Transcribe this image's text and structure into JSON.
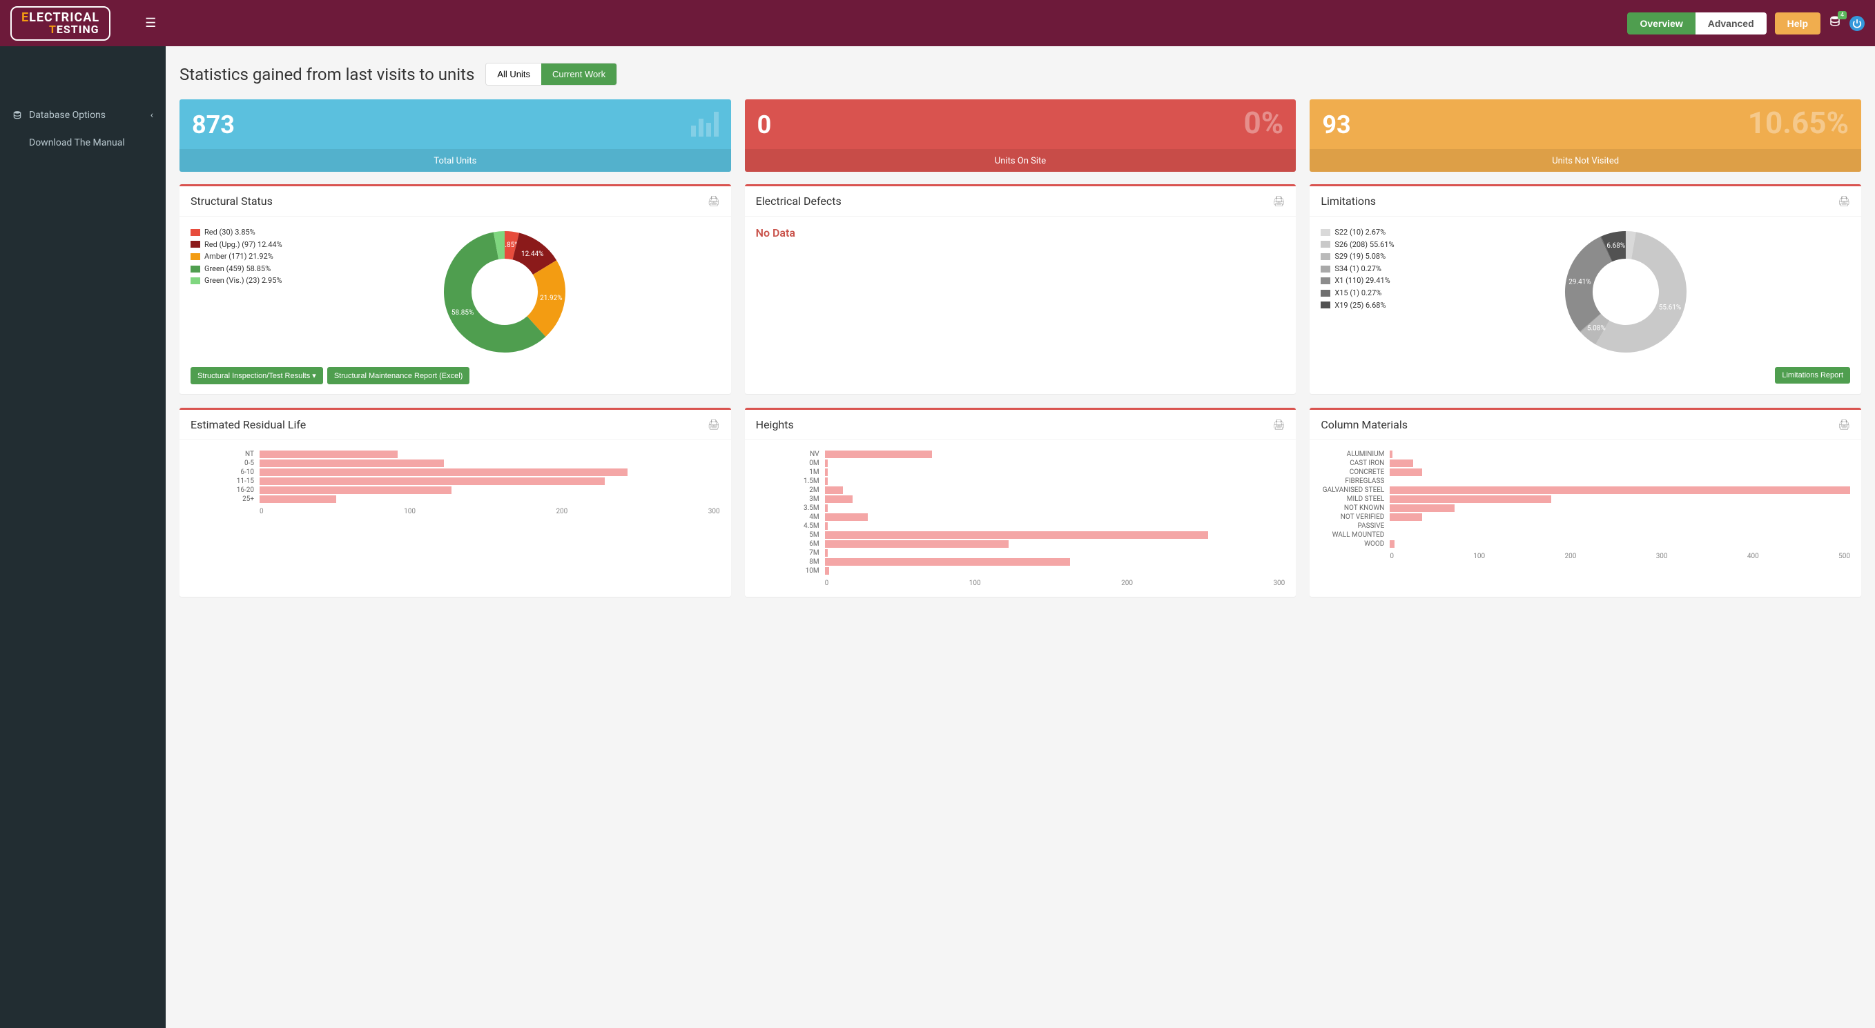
{
  "header": {
    "logo_line1": "ELECTRICAL",
    "logo_line2": "TESTING",
    "overview_label": "Overview",
    "advanced_label": "Advanced",
    "help_label": "Help",
    "notification_count": "4"
  },
  "sidebar": {
    "database_options": "Database Options",
    "download_manual": "Download The Manual"
  },
  "page": {
    "title": "Statistics gained from last visits to units",
    "tab_all": "All Units",
    "tab_current": "Current Work"
  },
  "stats": {
    "total_units": {
      "value": "873",
      "label": "Total Units",
      "color": "#5bc0de"
    },
    "on_site": {
      "value": "0",
      "pct": "0%",
      "label": "Units On Site",
      "color": "#d9534f"
    },
    "not_visited": {
      "value": "93",
      "pct": "10.65%",
      "label": "Units Not Visited",
      "color": "#f0ad4e"
    }
  },
  "structural_status": {
    "title": "Structural Status",
    "items": [
      {
        "label": "Red (30) 3.85%",
        "color": "#e74c3c",
        "pct": 3.85,
        "slice_label": "3.85%"
      },
      {
        "label": "Red (Upg.) (97) 12.44%",
        "color": "#8b1a1a",
        "pct": 12.44,
        "slice_label": "12.44%"
      },
      {
        "label": "Amber (171) 21.92%",
        "color": "#f39c12",
        "pct": 21.92,
        "slice_label": "21.92%"
      },
      {
        "label": "Green (459) 58.85%",
        "color": "#4f9e4f",
        "pct": 58.85,
        "slice_label": "58.85%"
      },
      {
        "label": "Green (Vis.) (23) 2.95%",
        "color": "#7fd67f",
        "pct": 2.95,
        "slice_label": "2.95%"
      }
    ],
    "btn_results": "Structural Inspection/Test Results",
    "btn_excel": "Structural Maintenance Report (Excel)"
  },
  "electrical_defects": {
    "title": "Electrical Defects",
    "no_data": "No Data"
  },
  "limitations": {
    "title": "Limitations",
    "items": [
      {
        "label": "S22 (10) 2.67%",
        "color": "#d9d9d9",
        "pct": 2.67,
        "slice_label": "2.67"
      },
      {
        "label": "S26 (208) 55.61%",
        "color": "#c9c9c9",
        "pct": 55.61,
        "slice_label": "55.61%"
      },
      {
        "label": "S29 (19) 5.08%",
        "color": "#bababa",
        "pct": 5.08,
        "slice_label": "5.08%"
      },
      {
        "label": "S34 (1) 0.27%",
        "color": "#a9a9a9",
        "pct": 0.27,
        "slice_label": ""
      },
      {
        "label": "X1 (110) 29.41%",
        "color": "#8c8c8c",
        "pct": 29.41,
        "slice_label": "29.41%"
      },
      {
        "label": "X15 (1) 0.27%",
        "color": "#6f6f6f",
        "pct": 0.27,
        "slice_label": ""
      },
      {
        "label": "X19 (25) 6.68%",
        "color": "#525252",
        "pct": 6.68,
        "slice_label": "6.68%"
      }
    ],
    "btn_report": "Limitations Report"
  },
  "residual_life": {
    "title": "Estimated Residual Life",
    "bar_color": "#f4a6a6",
    "xmax": 300,
    "xticks": [
      "0",
      "100",
      "200",
      "300"
    ],
    "rows": [
      {
        "label": "NT",
        "value": 90
      },
      {
        "label": "0-5",
        "value": 120
      },
      {
        "label": "6-10",
        "value": 240
      },
      {
        "label": "11-15",
        "value": 225
      },
      {
        "label": "16-20",
        "value": 125
      },
      {
        "label": "25+",
        "value": 50
      }
    ]
  },
  "heights": {
    "title": "Heights",
    "bar_color": "#f4a6a6",
    "xmax": 300,
    "xticks": [
      "0",
      "100",
      "200",
      "300"
    ],
    "rows": [
      {
        "label": "NV",
        "value": 70
      },
      {
        "label": "0M",
        "value": 2
      },
      {
        "label": "1M",
        "value": 2
      },
      {
        "label": "1.5M",
        "value": 2
      },
      {
        "label": "2M",
        "value": 12
      },
      {
        "label": "3M",
        "value": 18
      },
      {
        "label": "3.5M",
        "value": 2
      },
      {
        "label": "4M",
        "value": 28
      },
      {
        "label": "4.5M",
        "value": 2
      },
      {
        "label": "5M",
        "value": 250
      },
      {
        "label": "6M",
        "value": 120
      },
      {
        "label": "7M",
        "value": 2
      },
      {
        "label": "8M",
        "value": 160
      },
      {
        "label": "10M",
        "value": 3
      }
    ]
  },
  "materials": {
    "title": "Column Materials",
    "bar_color": "#f4a6a6",
    "xmax": 500,
    "xticks": [
      "0",
      "100",
      "200",
      "300",
      "400",
      "500"
    ],
    "rows": [
      {
        "label": "ALUMINIUM",
        "value": 3
      },
      {
        "label": "CAST IRON",
        "value": 25
      },
      {
        "label": "CONCRETE",
        "value": 35
      },
      {
        "label": "FIBREGLASS",
        "value": 0
      },
      {
        "label": "GALVANISED STEEL",
        "value": 500
      },
      {
        "label": "MILD STEEL",
        "value": 175
      },
      {
        "label": "NOT KNOWN",
        "value": 70
      },
      {
        "label": "NOT VERIFIED",
        "value": 35
      },
      {
        "label": "PASSIVE",
        "value": 0
      },
      {
        "label": "WALL MOUNTED",
        "value": 0
      },
      {
        "label": "WOOD",
        "value": 5
      }
    ]
  }
}
